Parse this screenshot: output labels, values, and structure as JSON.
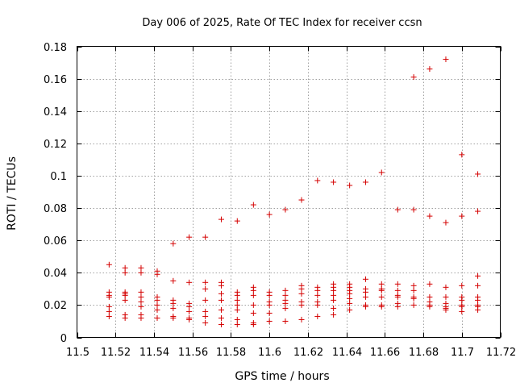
{
  "chart_data": {
    "type": "scatter",
    "title": "Day 006 of 2025, Rate Of TEC Index for receiver ccsn",
    "xlabel": "GPS time / hours",
    "ylabel": "ROTI / TECUs",
    "xlim": [
      11.5,
      11.72
    ],
    "ylim": [
      0,
      0.18
    ],
    "xticks": [
      11.5,
      11.52,
      11.54,
      11.56,
      11.58,
      11.6,
      11.62,
      11.64,
      11.66,
      11.68,
      11.7,
      11.72
    ],
    "xtick_labels": [
      "11.5",
      "11.52",
      "11.54",
      "11.56",
      "11.58",
      "11.6",
      "11.62",
      "11.64",
      "11.66",
      "11.68",
      "11.7",
      "11.72"
    ],
    "yticks": [
      0,
      0.02,
      0.04,
      0.06,
      0.08,
      0.1,
      0.12,
      0.14,
      0.16,
      0.18
    ],
    "ytick_labels": [
      "0",
      "0.02",
      "0.04",
      "0.06",
      "0.08",
      "0.1",
      "0.12",
      "0.14",
      "0.16",
      "0.18"
    ],
    "grid": true,
    "marker": "+",
    "color": "#d40000",
    "series": [
      {
        "name": "ROTI",
        "points": [
          [
            11.5167,
            0.045
          ],
          [
            11.5167,
            0.028
          ],
          [
            11.5167,
            0.026
          ],
          [
            11.5167,
            0.025
          ],
          [
            11.5167,
            0.019
          ],
          [
            11.5167,
            0.016
          ],
          [
            11.5167,
            0.013
          ],
          [
            11.525,
            0.043
          ],
          [
            11.525,
            0.04
          ],
          [
            11.525,
            0.028
          ],
          [
            11.525,
            0.027
          ],
          [
            11.525,
            0.026
          ],
          [
            11.525,
            0.023
          ],
          [
            11.525,
            0.014
          ],
          [
            11.525,
            0.012
          ],
          [
            11.5333,
            0.043
          ],
          [
            11.5333,
            0.04
          ],
          [
            11.5333,
            0.028
          ],
          [
            11.5333,
            0.025
          ],
          [
            11.5333,
            0.022
          ],
          [
            11.5333,
            0.019
          ],
          [
            11.5333,
            0.014
          ],
          [
            11.5333,
            0.012
          ],
          [
            11.5417,
            0.041
          ],
          [
            11.5417,
            0.039
          ],
          [
            11.5417,
            0.025
          ],
          [
            11.5417,
            0.023
          ],
          [
            11.5417,
            0.02
          ],
          [
            11.5417,
            0.017
          ],
          [
            11.5417,
            0.012
          ],
          [
            11.55,
            0.058
          ],
          [
            11.55,
            0.035
          ],
          [
            11.55,
            0.023
          ],
          [
            11.55,
            0.021
          ],
          [
            11.55,
            0.018
          ],
          [
            11.55,
            0.013
          ],
          [
            11.55,
            0.012
          ],
          [
            11.5583,
            0.062
          ],
          [
            11.5583,
            0.034
          ],
          [
            11.5583,
            0.021
          ],
          [
            11.5583,
            0.019
          ],
          [
            11.5583,
            0.016
          ],
          [
            11.5583,
            0.012
          ],
          [
            11.5583,
            0.011
          ],
          [
            11.5667,
            0.062
          ],
          [
            11.5667,
            0.034
          ],
          [
            11.5667,
            0.03
          ],
          [
            11.5667,
            0.023
          ],
          [
            11.5667,
            0.016
          ],
          [
            11.5667,
            0.013
          ],
          [
            11.5667,
            0.009
          ],
          [
            11.575,
            0.073
          ],
          [
            11.575,
            0.034
          ],
          [
            11.575,
            0.032
          ],
          [
            11.575,
            0.027
          ],
          [
            11.575,
            0.023
          ],
          [
            11.575,
            0.017
          ],
          [
            11.575,
            0.012
          ],
          [
            11.575,
            0.008
          ],
          [
            11.5833,
            0.072
          ],
          [
            11.5833,
            0.028
          ],
          [
            11.5833,
            0.026
          ],
          [
            11.5833,
            0.023
          ],
          [
            11.5833,
            0.02
          ],
          [
            11.5833,
            0.017
          ],
          [
            11.5833,
            0.011
          ],
          [
            11.5833,
            0.008
          ],
          [
            11.5917,
            0.082
          ],
          [
            11.5917,
            0.031
          ],
          [
            11.5917,
            0.029
          ],
          [
            11.5917,
            0.026
          ],
          [
            11.5917,
            0.02
          ],
          [
            11.5917,
            0.015
          ],
          [
            11.5917,
            0.009
          ],
          [
            11.5917,
            0.008
          ],
          [
            11.6,
            0.076
          ],
          [
            11.6,
            0.028
          ],
          [
            11.6,
            0.026
          ],
          [
            11.6,
            0.022
          ],
          [
            11.6,
            0.02
          ],
          [
            11.6,
            0.015
          ],
          [
            11.6,
            0.01
          ],
          [
            11.6083,
            0.079
          ],
          [
            11.6083,
            0.029
          ],
          [
            11.6083,
            0.026
          ],
          [
            11.6083,
            0.023
          ],
          [
            11.6083,
            0.021
          ],
          [
            11.6083,
            0.018
          ],
          [
            11.6083,
            0.01
          ],
          [
            11.6167,
            0.085
          ],
          [
            11.6167,
            0.032
          ],
          [
            11.6167,
            0.03
          ],
          [
            11.6167,
            0.027
          ],
          [
            11.6167,
            0.022
          ],
          [
            11.6167,
            0.02
          ],
          [
            11.6167,
            0.011
          ],
          [
            11.625,
            0.097
          ],
          [
            11.625,
            0.031
          ],
          [
            11.625,
            0.029
          ],
          [
            11.625,
            0.026
          ],
          [
            11.625,
            0.022
          ],
          [
            11.625,
            0.02
          ],
          [
            11.625,
            0.013
          ],
          [
            11.6333,
            0.096
          ],
          [
            11.6333,
            0.033
          ],
          [
            11.6333,
            0.031
          ],
          [
            11.6333,
            0.029
          ],
          [
            11.6333,
            0.026
          ],
          [
            11.6333,
            0.023
          ],
          [
            11.6333,
            0.018
          ],
          [
            11.6333,
            0.014
          ],
          [
            11.6417,
            0.094
          ],
          [
            11.6417,
            0.033
          ],
          [
            11.6417,
            0.031
          ],
          [
            11.6417,
            0.029
          ],
          [
            11.6417,
            0.027
          ],
          [
            11.6417,
            0.024
          ],
          [
            11.6417,
            0.021
          ],
          [
            11.6417,
            0.017
          ],
          [
            11.65,
            0.096
          ],
          [
            11.65,
            0.036
          ],
          [
            11.65,
            0.03
          ],
          [
            11.65,
            0.028
          ],
          [
            11.65,
            0.025
          ],
          [
            11.65,
            0.02
          ],
          [
            11.65,
            0.019
          ],
          [
            11.6583,
            0.102
          ],
          [
            11.6583,
            0.033
          ],
          [
            11.6583,
            0.03
          ],
          [
            11.6583,
            0.029
          ],
          [
            11.6583,
            0.025
          ],
          [
            11.6583,
            0.02
          ],
          [
            11.6583,
            0.019
          ],
          [
            11.6667,
            0.079
          ],
          [
            11.6667,
            0.033
          ],
          [
            11.6667,
            0.029
          ],
          [
            11.6667,
            0.026
          ],
          [
            11.6667,
            0.025
          ],
          [
            11.6667,
            0.021
          ],
          [
            11.6667,
            0.019
          ],
          [
            11.675,
            0.161
          ],
          [
            11.675,
            0.079
          ],
          [
            11.675,
            0.032
          ],
          [
            11.675,
            0.029
          ],
          [
            11.675,
            0.025
          ],
          [
            11.675,
            0.024
          ],
          [
            11.675,
            0.02
          ],
          [
            11.6833,
            0.166
          ],
          [
            11.6833,
            0.075
          ],
          [
            11.6833,
            0.033
          ],
          [
            11.6833,
            0.025
          ],
          [
            11.6833,
            0.022
          ],
          [
            11.6833,
            0.02
          ],
          [
            11.6833,
            0.019
          ],
          [
            11.6917,
            0.172
          ],
          [
            11.6917,
            0.071
          ],
          [
            11.6917,
            0.031
          ],
          [
            11.6917,
            0.025
          ],
          [
            11.6917,
            0.021
          ],
          [
            11.6917,
            0.019
          ],
          [
            11.6917,
            0.018
          ],
          [
            11.6917,
            0.017
          ],
          [
            11.7,
            0.113
          ],
          [
            11.7,
            0.075
          ],
          [
            11.7,
            0.032
          ],
          [
            11.7,
            0.025
          ],
          [
            11.7,
            0.023
          ],
          [
            11.7,
            0.02
          ],
          [
            11.7,
            0.019
          ],
          [
            11.7,
            0.016
          ],
          [
            11.7083,
            0.101
          ],
          [
            11.7083,
            0.078
          ],
          [
            11.7083,
            0.038
          ],
          [
            11.7083,
            0.032
          ],
          [
            11.7083,
            0.025
          ],
          [
            11.7083,
            0.023
          ],
          [
            11.7083,
            0.02
          ],
          [
            11.7083,
            0.019
          ],
          [
            11.7083,
            0.017
          ]
        ]
      }
    ]
  }
}
